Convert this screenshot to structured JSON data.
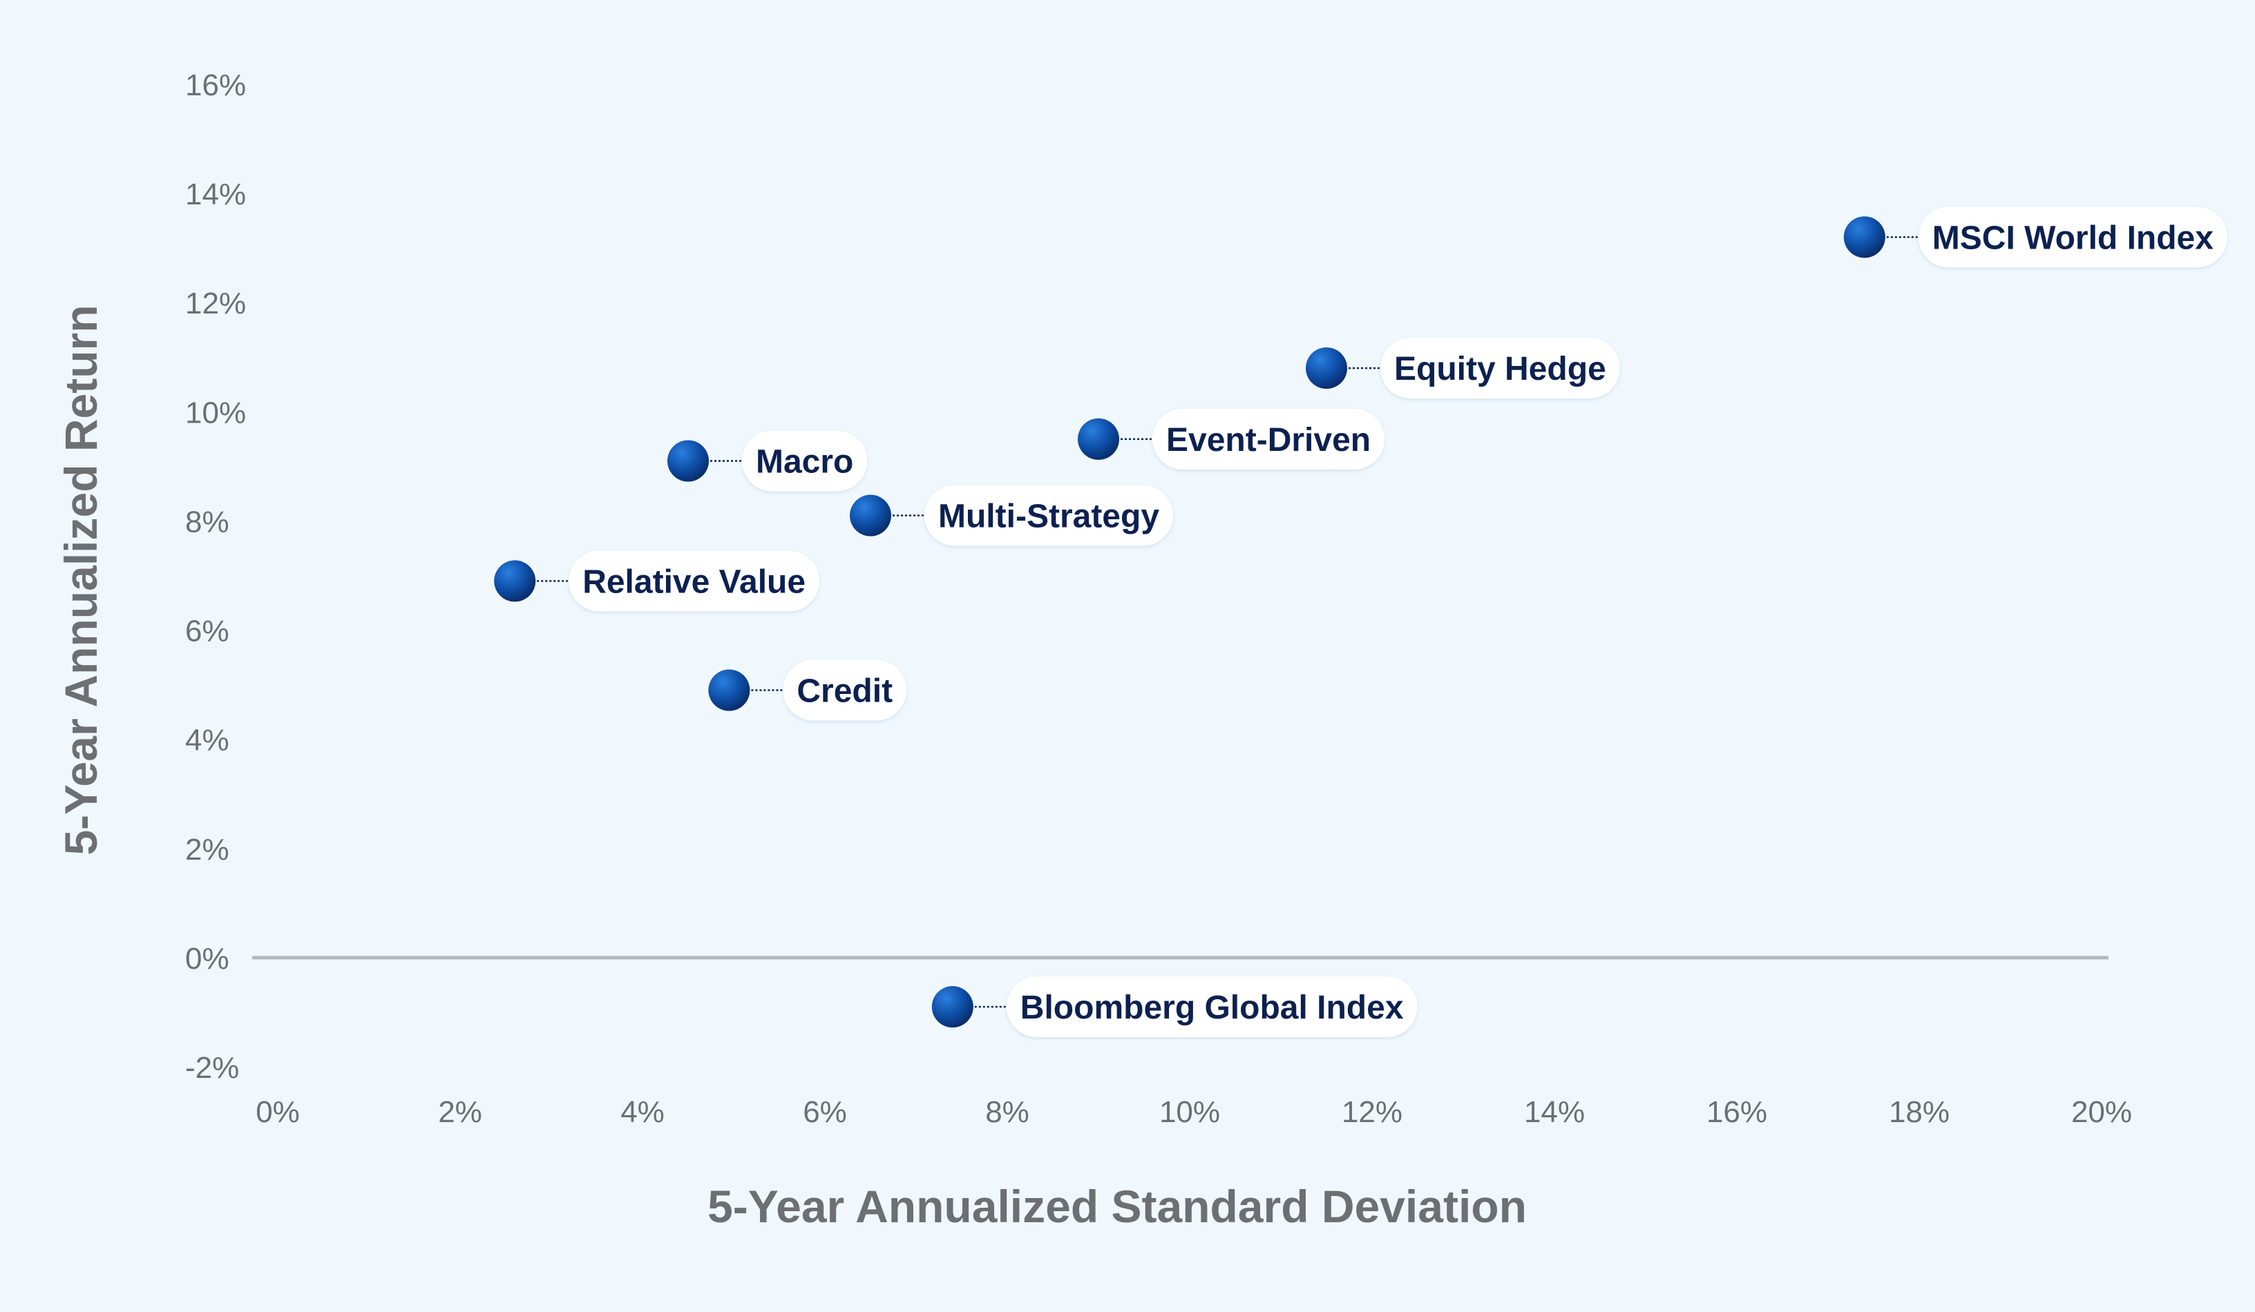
{
  "colors": {
    "background": "#f0f8fd",
    "axis_text": "#6d6f72",
    "label_text": "#0c2150",
    "marker_light": "#1f6fd2",
    "marker_dark": "#0a2a6a",
    "zero_line": "#b5b8ba"
  },
  "chart_data": {
    "type": "scatter",
    "title": "",
    "xlabel": "5-Year Annualized Standard Deviation",
    "ylabel": "5-Year Annualized Return",
    "xlim": [
      0,
      20
    ],
    "ylim": [
      -2,
      16
    ],
    "x_ticks": [
      0,
      2,
      4,
      6,
      8,
      10,
      12,
      14,
      16,
      18,
      20
    ],
    "y_ticks": [
      -2,
      0,
      2,
      4,
      6,
      8,
      10,
      12,
      14,
      16
    ],
    "x_tick_labels": [
      "0%",
      "2%",
      "4%",
      "6%",
      "8%",
      "10%",
      "12%",
      "14%",
      "16%",
      "18%",
      "20%"
    ],
    "y_tick_labels": [
      "-2%",
      "0%",
      "2%",
      "4%",
      "6%",
      "8%",
      "10%",
      "12%",
      "14%",
      "16%"
    ],
    "grid": false,
    "reference_line_y": 0,
    "points": [
      {
        "name": "MSCI World Index",
        "x": 17.4,
        "y": 13.2
      },
      {
        "name": "Equity Hedge",
        "x": 11.5,
        "y": 10.8
      },
      {
        "name": "Event-Driven",
        "x": 9.0,
        "y": 9.5
      },
      {
        "name": "Macro",
        "x": 4.5,
        "y": 9.1
      },
      {
        "name": "Multi-Strategy",
        "x": 6.5,
        "y": 8.1
      },
      {
        "name": "Relative Value",
        "x": 2.6,
        "y": 6.9
      },
      {
        "name": "Credit",
        "x": 4.95,
        "y": 4.9
      },
      {
        "name": "Bloomberg Global Index",
        "x": 7.4,
        "y": -0.9
      }
    ]
  }
}
